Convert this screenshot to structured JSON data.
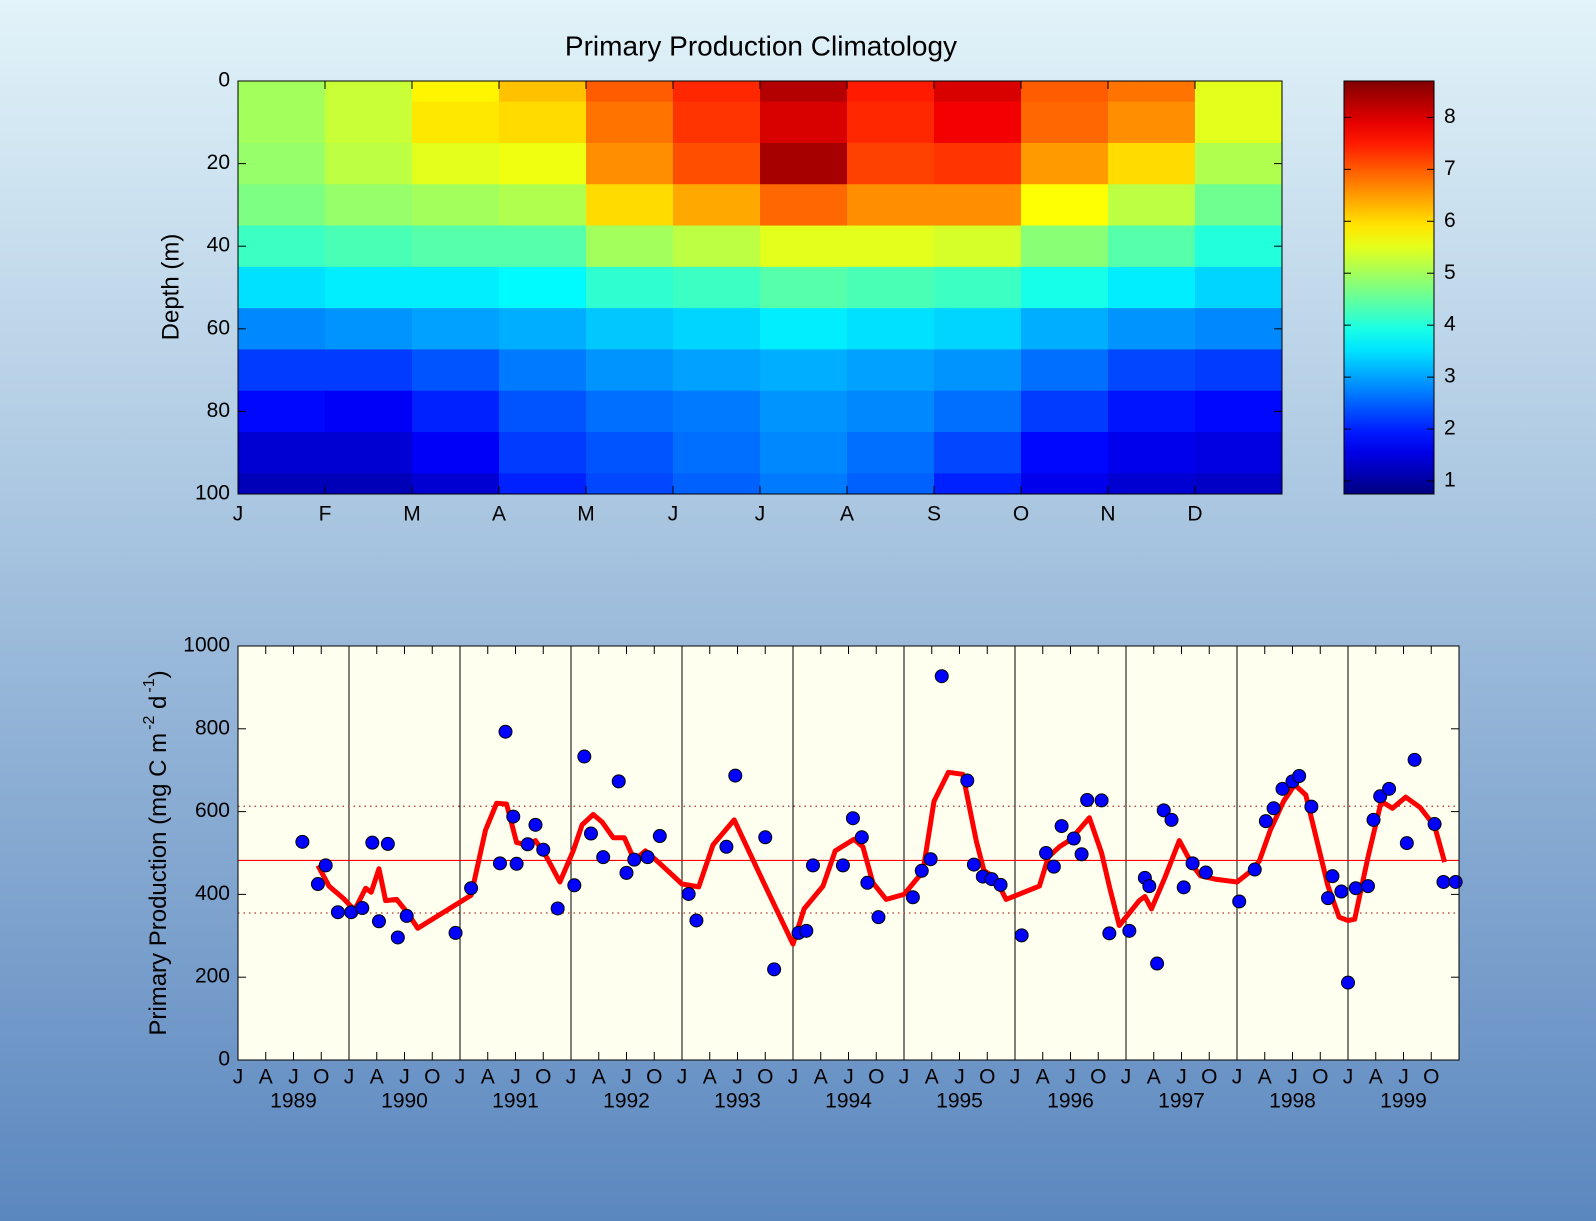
{
  "chart_data": [
    {
      "type": "heatmap",
      "title": "Primary Production Climatology",
      "ylabel": "Depth (m)",
      "x": [
        0.5,
        1.5,
        2.5,
        3.5,
        4.5,
        5.5,
        6.5,
        7.5,
        8.5,
        9.5,
        10.5,
        11.5
      ],
      "y": [
        0,
        10,
        20,
        30,
        40,
        50,
        60,
        70,
        80,
        90,
        100
      ],
      "values": [
        [
          5.0,
          5.0,
          4.9,
          4.7,
          4.2,
          3.5,
          2.8,
          2.2,
          1.8,
          1.4,
          1.2
        ],
        [
          5.3,
          5.3,
          5.2,
          4.9,
          4.3,
          3.6,
          2.9,
          2.2,
          1.7,
          1.4,
          1.2
        ],
        [
          5.8,
          5.9,
          5.5,
          5.0,
          4.4,
          3.6,
          3.0,
          2.4,
          2.0,
          1.7,
          1.4
        ],
        [
          6.2,
          6.0,
          5.6,
          5.1,
          4.4,
          3.7,
          3.1,
          2.7,
          2.4,
          2.2,
          2.0
        ],
        [
          7.0,
          6.8,
          6.6,
          6.0,
          5.0,
          4.1,
          3.3,
          2.9,
          2.6,
          2.4,
          2.3
        ],
        [
          7.4,
          7.3,
          7.1,
          6.4,
          5.2,
          4.2,
          3.4,
          3.0,
          2.7,
          2.6,
          2.5
        ],
        [
          8.3,
          8.0,
          8.4,
          6.9,
          5.5,
          4.4,
          3.6,
          3.1,
          2.9,
          2.8,
          2.7
        ],
        [
          7.5,
          7.4,
          7.2,
          6.6,
          5.5,
          4.3,
          3.5,
          3.0,
          2.8,
          2.6,
          2.5
        ],
        [
          8.0,
          7.8,
          7.3,
          6.6,
          5.4,
          4.2,
          3.4,
          2.9,
          2.6,
          2.3,
          2.0
        ],
        [
          7.0,
          6.9,
          6.5,
          5.7,
          4.8,
          3.9,
          3.1,
          2.6,
          2.2,
          1.8,
          1.6
        ],
        [
          6.8,
          6.6,
          6.0,
          5.2,
          4.4,
          3.6,
          2.9,
          2.3,
          1.9,
          1.6,
          1.4
        ],
        [
          5.5,
          5.5,
          5.1,
          4.6,
          4.0,
          3.4,
          2.8,
          2.2,
          1.8,
          1.5,
          1.3
        ]
      ],
      "xlim": [
        0,
        12
      ],
      "xticks": [
        {
          "value": 0,
          "label": "J"
        },
        {
          "value": 1,
          "label": "F"
        },
        {
          "value": 2,
          "label": "M"
        },
        {
          "value": 3,
          "label": "A"
        },
        {
          "value": 4,
          "label": "M"
        },
        {
          "value": 5,
          "label": "J"
        },
        {
          "value": 6,
          "label": "J"
        },
        {
          "value": 7,
          "label": "A"
        },
        {
          "value": 8,
          "label": "S"
        },
        {
          "value": 9,
          "label": "O"
        },
        {
          "value": 10,
          "label": "N"
        },
        {
          "value": 11,
          "label": "D"
        }
      ],
      "ylim": [
        100,
        0
      ],
      "yticks": [
        0,
        20,
        40,
        60,
        80,
        100
      ],
      "colormap": "jet",
      "clim": [
        0.75,
        8.7
      ],
      "cticks": [
        1,
        2,
        3,
        4,
        5,
        6,
        7,
        8
      ]
    },
    {
      "type": "timeseries",
      "ylabel": [
        "Primary Production (mg C m",
        "-2",
        " d",
        "-1",
        ")"
      ],
      "xlim": [
        1989,
        2000
      ],
      "ylim": [
        0,
        1000
      ],
      "yticks": [
        0,
        200,
        400,
        600,
        800,
        1000
      ],
      "xticks": [
        {
          "value": 1989,
          "label": "J"
        },
        {
          "value": 1989.25,
          "label": "A"
        },
        {
          "value": 1989.5,
          "label": "J"
        },
        {
          "value": 1989.75,
          "label": "O"
        },
        {
          "value": 1990,
          "label": "J"
        },
        {
          "value": 1990.25,
          "label": "A"
        },
        {
          "value": 1990.5,
          "label": "J"
        },
        {
          "value": 1990.75,
          "label": "O"
        },
        {
          "value": 1991,
          "label": "J"
        },
        {
          "value": 1991.25,
          "label": "A"
        },
        {
          "value": 1991.5,
          "label": "J"
        },
        {
          "value": 1991.75,
          "label": "O"
        },
        {
          "value": 1992,
          "label": "J"
        },
        {
          "value": 1992.25,
          "label": "A"
        },
        {
          "value": 1992.5,
          "label": "J"
        },
        {
          "value": 1992.75,
          "label": "O"
        },
        {
          "value": 1993,
          "label": "J"
        },
        {
          "value": 1993.25,
          "label": "A"
        },
        {
          "value": 1993.5,
          "label": "J"
        },
        {
          "value": 1993.75,
          "label": "O"
        },
        {
          "value": 1994,
          "label": "J"
        },
        {
          "value": 1994.25,
          "label": "A"
        },
        {
          "value": 1994.5,
          "label": "J"
        },
        {
          "value": 1994.75,
          "label": "O"
        },
        {
          "value": 1995,
          "label": "J"
        },
        {
          "value": 1995.25,
          "label": "A"
        },
        {
          "value": 1995.5,
          "label": "J"
        },
        {
          "value": 1995.75,
          "label": "O"
        },
        {
          "value": 1996,
          "label": "J"
        },
        {
          "value": 1996.25,
          "label": "A"
        },
        {
          "value": 1996.5,
          "label": "J"
        },
        {
          "value": 1996.75,
          "label": "O"
        },
        {
          "value": 1997,
          "label": "J"
        },
        {
          "value": 1997.25,
          "label": "A"
        },
        {
          "value": 1997.5,
          "label": "J"
        },
        {
          "value": 1997.75,
          "label": "O"
        },
        {
          "value": 1998,
          "label": "J"
        },
        {
          "value": 1998.25,
          "label": "A"
        },
        {
          "value": 1998.5,
          "label": "J"
        },
        {
          "value": 1998.75,
          "label": "O"
        },
        {
          "value": 1999,
          "label": "J"
        },
        {
          "value": 1999.25,
          "label": "A"
        },
        {
          "value": 1999.5,
          "label": "J"
        },
        {
          "value": 1999.75,
          "label": "O"
        }
      ],
      "year_labels": [
        {
          "value": 1989.5,
          "label": "1989"
        },
        {
          "value": 1990.5,
          "label": "1990"
        },
        {
          "value": 1991.5,
          "label": "1991"
        },
        {
          "value": 1992.5,
          "label": "1992"
        },
        {
          "value": 1993.5,
          "label": "1993"
        },
        {
          "value": 1994.5,
          "label": "1994"
        },
        {
          "value": 1995.5,
          "label": "1995"
        },
        {
          "value": 1996.5,
          "label": "1996"
        },
        {
          "value": 1997.5,
          "label": "1997"
        },
        {
          "value": 1998.5,
          "label": "1998"
        },
        {
          "value": 1999.5,
          "label": "1999"
        }
      ],
      "xgrid": [
        1990,
        1991,
        1992,
        1993,
        1994,
        1995,
        1996,
        1997,
        1998,
        1999
      ],
      "hlines": [
        {
          "value": 482,
          "style": "solid",
          "color": "#ff0000"
        },
        {
          "value": 355,
          "style": "dotted",
          "color": "#b03030"
        },
        {
          "value": 613,
          "style": "dotted",
          "color": "#b03030"
        }
      ],
      "series": [
        {
          "kind": "scatter",
          "color": "#0000ff",
          "x": [
            1989.58,
            1989.72,
            1989.79,
            1989.9,
            1990.02,
            1990.12,
            1990.21,
            1990.27,
            1990.35,
            1990.44,
            1990.52,
            1990.96,
            1991.1,
            1991.36,
            1991.41,
            1991.48,
            1991.51,
            1991.61,
            1991.68,
            1991.75,
            1991.88,
            1992.03,
            1992.12,
            1992.18,
            1992.29,
            1992.43,
            1992.5,
            1992.57,
            1992.69,
            1992.8,
            1993.06,
            1993.13,
            1993.4,
            1993.48,
            1993.75,
            1993.83,
            1994.05,
            1994.12,
            1994.18,
            1994.45,
            1994.54,
            1994.62,
            1994.67,
            1994.77,
            1995.08,
            1995.16,
            1995.24,
            1995.34,
            1995.57,
            1995.63,
            1995.71,
            1995.79,
            1995.87,
            1996.06,
            1996.28,
            1996.35,
            1996.42,
            1996.53,
            1996.6,
            1996.65,
            1996.78,
            1996.85,
            1997.03,
            1997.17,
            1997.21,
            1997.28,
            1997.34,
            1997.41,
            1997.52,
            1997.6,
            1997.72,
            1998.02,
            1998.16,
            1998.26,
            1998.33,
            1998.41,
            1998.5,
            1998.56,
            1998.67,
            1998.82,
            1998.86,
            1998.94,
            1999.0,
            1999.07,
            1999.18,
            1999.23,
            1999.29,
            1999.37,
            1999.53,
            1999.6,
            1999.78,
            1999.86,
            1999.97
          ],
          "values": [
            527,
            425,
            470,
            357,
            357,
            367,
            525,
            335,
            522,
            296,
            348,
            307,
            415,
            475,
            793,
            588,
            474,
            521,
            568,
            508,
            366,
            422,
            733,
            547,
            490,
            673,
            452,
            484,
            490,
            541,
            401,
            337,
            515,
            687,
            538,
            219,
            307,
            312,
            470,
            470,
            584,
            538,
            428,
            345,
            393,
            457,
            485,
            927,
            675,
            472,
            443,
            437,
            423,
            301,
            500,
            467,
            565,
            535,
            497,
            628,
            627,
            306,
            312,
            440,
            420,
            233,
            603,
            580,
            417,
            475,
            453,
            383,
            460,
            577,
            608,
            655,
            673,
            686,
            612,
            391,
            444,
            407,
            187,
            415,
            420,
            580,
            637,
            655,
            524,
            725,
            570,
            430,
            430
          ]
        },
        {
          "kind": "line",
          "color": "#ff0000",
          "x": [
            1989.72,
            1989.82,
            1989.95,
            1990.05,
            1990.15,
            1990.2,
            1990.27,
            1990.33,
            1990.43,
            1990.52,
            1990.62,
            1991.1,
            1991.23,
            1991.33,
            1991.42,
            1991.51,
            1991.6,
            1991.68,
            1991.78,
            1991.9,
            1992.02,
            1992.1,
            1992.2,
            1992.28,
            1992.38,
            1992.48,
            1992.57,
            1992.67,
            1992.8,
            1993.0,
            1993.15,
            1993.28,
            1993.47,
            1993.75,
            1994.0,
            1994.1,
            1994.27,
            1994.38,
            1994.55,
            1994.63,
            1994.72,
            1994.84,
            1995.0,
            1995.17,
            1995.27,
            1995.4,
            1995.53,
            1995.65,
            1995.72,
            1995.82,
            1995.92,
            1996.22,
            1996.3,
            1996.4,
            1996.5,
            1996.67,
            1996.78,
            1996.85,
            1996.94,
            1997.12,
            1997.17,
            1997.23,
            1997.35,
            1997.48,
            1997.6,
            1997.67,
            1997.8,
            1998.0,
            1998.12,
            1998.2,
            1998.3,
            1998.42,
            1998.52,
            1998.62,
            1998.72,
            1998.82,
            1998.92,
            1999.0,
            1999.06,
            1999.18,
            1999.3,
            1999.4,
            1999.52,
            1999.65,
            1999.78,
            1999.87
          ],
          "values": [
            470,
            420,
            390,
            362,
            415,
            405,
            462,
            385,
            388,
            358,
            318,
            398,
            555,
            620,
            618,
            525,
            520,
            530,
            490,
            430,
            505,
            568,
            593,
            575,
            537,
            537,
            483,
            505,
            475,
            425,
            418,
            520,
            580,
            420,
            280,
            365,
            420,
            505,
            533,
            515,
            428,
            388,
            400,
            455,
            625,
            695,
            690,
            530,
            458,
            440,
            388,
            420,
            490,
            515,
            532,
            585,
            500,
            420,
            325,
            385,
            395,
            365,
            440,
            530,
            470,
            445,
            437,
            430,
            455,
            480,
            555,
            625,
            665,
            640,
            530,
            420,
            345,
            337,
            340,
            490,
            625,
            608,
            635,
            610,
            565,
            478
          ]
        }
      ]
    }
  ]
}
